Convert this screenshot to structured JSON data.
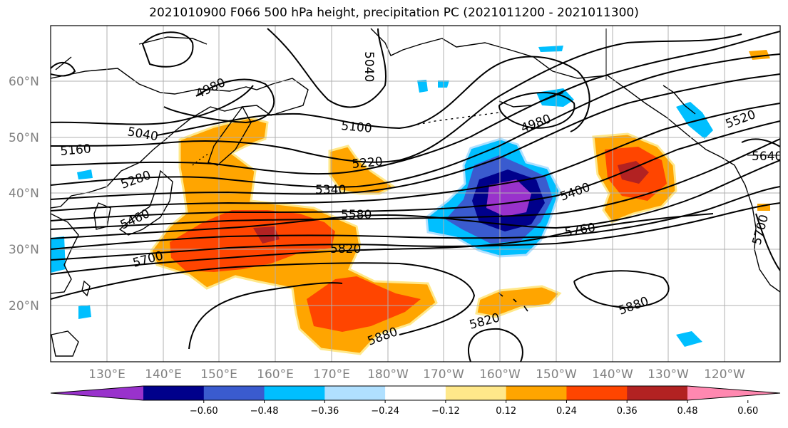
{
  "title": "2021010900 F066 500 hPa height, precipitation PC (2021011200 - 2021011300)",
  "map": {
    "lat_labels": [
      "60°N",
      "50°N",
      "40°N",
      "30°N",
      "20°N"
    ],
    "lon_labels": [
      "130°E",
      "140°E",
      "150°E",
      "160°E",
      "170°E",
      "180°W",
      "170°W",
      "160°W",
      "150°W",
      "140°W",
      "130°W",
      "120°W"
    ],
    "contour_labels": [
      "4980",
      "5040",
      "5160",
      "5280",
      "5460",
      "5700",
      "5040",
      "5100",
      "5220",
      "5340",
      "5580",
      "5820",
      "4980",
      "5400",
      "5760",
      "5520",
      "5640",
      "5700",
      "5880",
      "5820"
    ]
  },
  "colorbar": {
    "colors": [
      "#9932cc",
      "#00008b",
      "#3a5bcf",
      "#00bfff",
      "#b0e0ff",
      "#ffffff",
      "#ffe88a",
      "#ffa500",
      "#ff4500",
      "#b22222",
      "#ff88b0"
    ],
    "ticks": [
      "−0.60",
      "−0.48",
      "−0.36",
      "−0.24",
      "−0.12",
      "0.12",
      "0.24",
      "0.36",
      "0.48",
      "0.60"
    ]
  }
}
